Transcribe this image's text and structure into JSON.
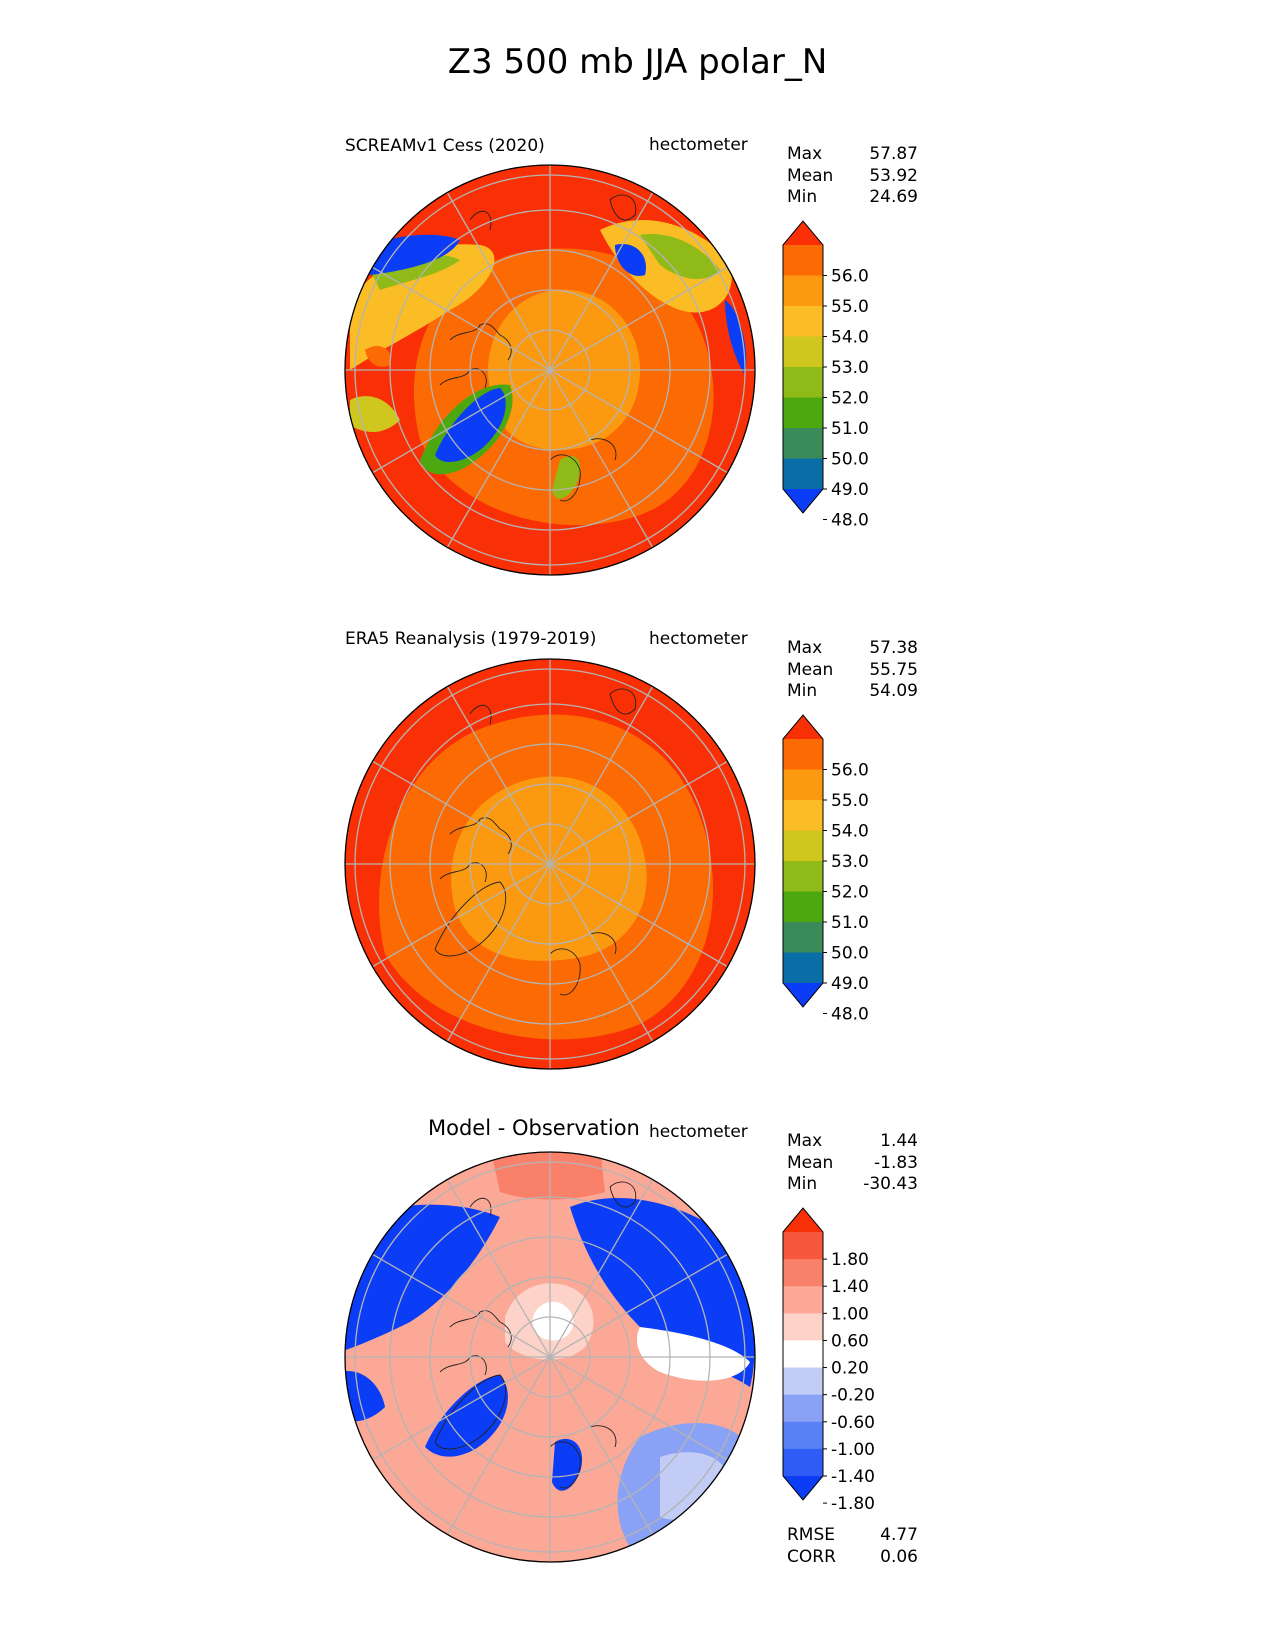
{
  "page": {
    "title": "Z3 500 mb JJA polar_N"
  },
  "palettes": {
    "absolute": [
      "#0a3df5",
      "#0a6ea6",
      "#3a8a5a",
      "#4da810",
      "#8fba18",
      "#cfc71e",
      "#fbbd25",
      "#fb9a10",
      "#fb6a03",
      "#f93005"
    ],
    "difference": [
      "#0a3df5",
      "#2e5cf5",
      "#5a80f5",
      "#8aa2f5",
      "#c2ccf5",
      "#ffffff",
      "#fdd2c8",
      "#fba896",
      "#fa8169",
      "#f9573d",
      "#f93005"
    ]
  },
  "panels": [
    {
      "title": "SCREAMv1 Cess (2020)",
      "units": "hectometer",
      "stats": [
        {
          "label": "Max",
          "value": "57.87"
        },
        {
          "label": "Mean",
          "value": "53.92"
        },
        {
          "label": "Min",
          "value": "24.69"
        }
      ],
      "colorbar_ticks": [
        "56.0",
        "55.0",
        "54.0",
        "53.0",
        "52.0",
        "51.0",
        "50.0",
        "49.0",
        "48.0"
      ]
    },
    {
      "title": "ERA5 Reanalysis (1979-2019)",
      "units": "hectometer",
      "stats": [
        {
          "label": "Max",
          "value": "57.38"
        },
        {
          "label": "Mean",
          "value": "55.75"
        },
        {
          "label": "Min",
          "value": "54.09"
        }
      ],
      "colorbar_ticks": [
        "56.0",
        "55.0",
        "54.0",
        "53.0",
        "52.0",
        "51.0",
        "50.0",
        "49.0",
        "48.0"
      ]
    },
    {
      "title": "Model - Observation",
      "units": "hectometer",
      "stats": [
        {
          "label": "Max",
          "value": "1.44"
        },
        {
          "label": "Mean",
          "value": "-1.83"
        },
        {
          "label": "Min",
          "value": "-30.43"
        }
      ],
      "colorbar_ticks": [
        "1.80",
        "1.40",
        "1.00",
        "0.60",
        "0.20",
        "-0.20",
        "-0.60",
        "-1.00",
        "-1.40",
        "-1.80"
      ],
      "metrics": [
        {
          "label": "RMSE",
          "value": "4.77"
        },
        {
          "label": "CORR",
          "value": "0.06"
        }
      ]
    }
  ],
  "chart_data": [
    {
      "type": "heatmap",
      "projection": "north polar stereographic",
      "title": "SCREAMv1 Cess (2020)",
      "variable": "Z3 500 mb JJA",
      "units": "hectometer",
      "stats": {
        "max": 57.87,
        "mean": 53.92,
        "min": 24.69
      },
      "levels": [
        48,
        49,
        50,
        51,
        52,
        53,
        54,
        55,
        56
      ],
      "extend": "both"
    },
    {
      "type": "heatmap",
      "projection": "north polar stereographic",
      "title": "ERA5 Reanalysis (1979-2019)",
      "variable": "Z3 500 mb JJA",
      "units": "hectometer",
      "stats": {
        "max": 57.38,
        "mean": 55.75,
        "min": 54.09
      },
      "levels": [
        48,
        49,
        50,
        51,
        52,
        53,
        54,
        55,
        56
      ],
      "extend": "both"
    },
    {
      "type": "heatmap",
      "projection": "north polar stereographic",
      "title": "Model - Observation",
      "variable": "Z3 500 mb JJA difference",
      "units": "hectometer",
      "stats": {
        "max": 1.44,
        "mean": -1.83,
        "min": -30.43,
        "rmse": 4.77,
        "corr": 0.06
      },
      "levels": [
        -1.8,
        -1.4,
        -1.0,
        -0.6,
        -0.2,
        0.2,
        0.6,
        1.0,
        1.4,
        1.8
      ],
      "extend": "both"
    }
  ]
}
